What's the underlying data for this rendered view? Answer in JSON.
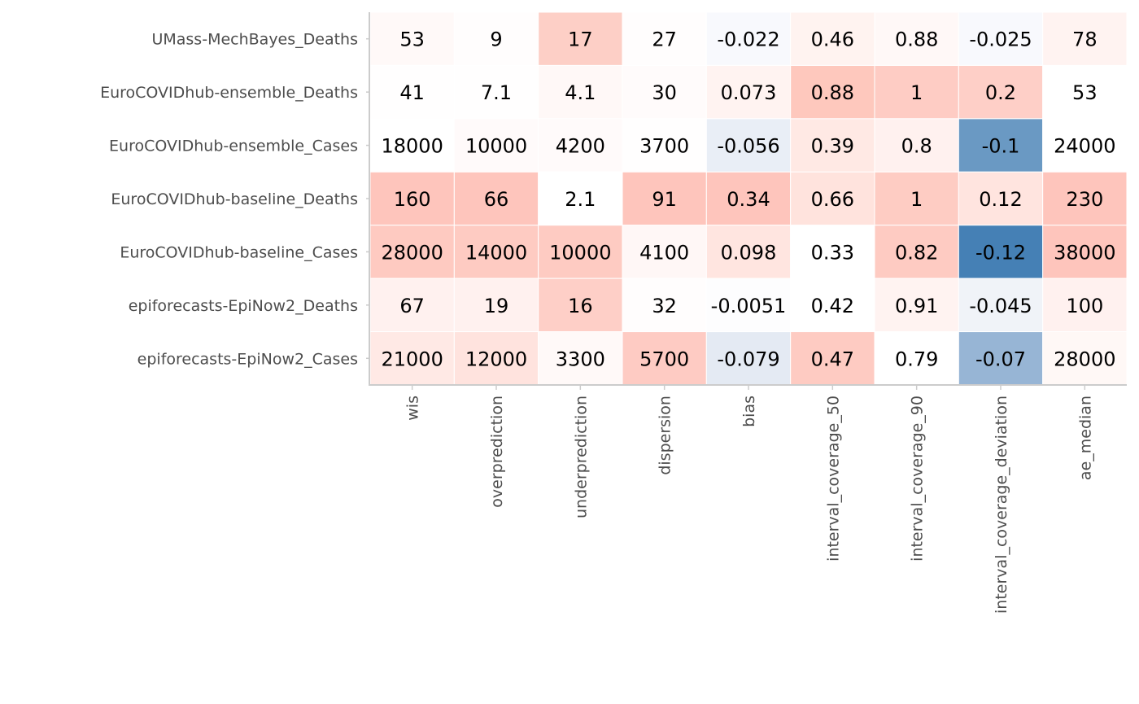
{
  "chart_data": {
    "type": "heatmap",
    "title": "",
    "xlabel": "",
    "ylabel": "",
    "rows": [
      "UMass-MechBayes_Deaths",
      "EuroCOVIDhub-ensemble_Deaths",
      "EuroCOVIDhub-ensemble_Cases",
      "EuroCOVIDhub-baseline_Deaths",
      "EuroCOVIDhub-baseline_Cases",
      "epiforecasts-EpiNow2_Deaths",
      "epiforecasts-EpiNow2_Cases"
    ],
    "columns": [
      "wis",
      "overprediction",
      "underprediction",
      "dispersion",
      "bias",
      "interval_coverage_50",
      "interval_coverage_90",
      "interval_coverage_deviation",
      "ae_median"
    ],
    "labels": [
      [
        "53",
        "9",
        "17",
        "27",
        "-0.022",
        "0.46",
        "0.88",
        "-0.025",
        "78"
      ],
      [
        "41",
        "7.1",
        "4.1",
        "30",
        "0.073",
        "0.88",
        "1",
        "0.2",
        "53"
      ],
      [
        "18000",
        "10000",
        "4200",
        "3700",
        "-0.056",
        "0.39",
        "0.8",
        "-0.1",
        "24000"
      ],
      [
        "160",
        "66",
        "2.1",
        "91",
        "0.34",
        "0.66",
        "1",
        "0.12",
        "230"
      ],
      [
        "28000",
        "14000",
        "10000",
        "4100",
        "0.098",
        "0.33",
        "0.82",
        "-0.12",
        "38000"
      ],
      [
        "67",
        "19",
        "16",
        "32",
        "-0.0051",
        "0.42",
        "0.91",
        "-0.045",
        "100"
      ],
      [
        "21000",
        "12000",
        "3300",
        "5700",
        "-0.079",
        "0.47",
        "0.79",
        "-0.07",
        "28000"
      ]
    ],
    "fill_colors": [
      [
        "#fff9f8",
        "#fffdfd",
        "#fdcfc6",
        "#fffdfd",
        "#f8f9fd",
        "#fff3f0",
        "#fff8f7",
        "#f8f9fd",
        "#fff3f1"
      ],
      [
        "#fffefe",
        "#fffefe",
        "#fff8f7",
        "#fffbfb",
        "#fff3f1",
        "#fec8bd",
        "#feccc4",
        "#fecfc7",
        "#ffffff"
      ],
      [
        "#ffffff",
        "#fffafa",
        "#fffafa",
        "#fffefe",
        "#e9eef6",
        "#ffe9e4",
        "#fff1ef",
        "#6a99c3",
        "#ffffff"
      ],
      [
        "#fec5bc",
        "#fec5bc",
        "#ffffff",
        "#fec5bc",
        "#fec5bc",
        "#ffe3dd",
        "#feccc3",
        "#ffe4df",
        "#fec5bc"
      ],
      [
        "#fecac1",
        "#fecbc2",
        "#fecbc2",
        "#fff7f6",
        "#ffe5e0",
        "#ffffff",
        "#fecbc2",
        "#4580b5",
        "#fec5bc"
      ],
      [
        "#fff1ef",
        "#fff1ef",
        "#fecfc7",
        "#fffdfd",
        "#fdfdfe",
        "#ffffff",
        "#fff3f1",
        "#f0f3f8",
        "#fff1ef"
      ],
      [
        "#ffe9e5",
        "#ffe3de",
        "#fff9f8",
        "#fecbc3",
        "#e4eaf3",
        "#fecbc2",
        "#ffffff",
        "#97b5d5",
        "#fff8f6"
      ]
    ]
  }
}
